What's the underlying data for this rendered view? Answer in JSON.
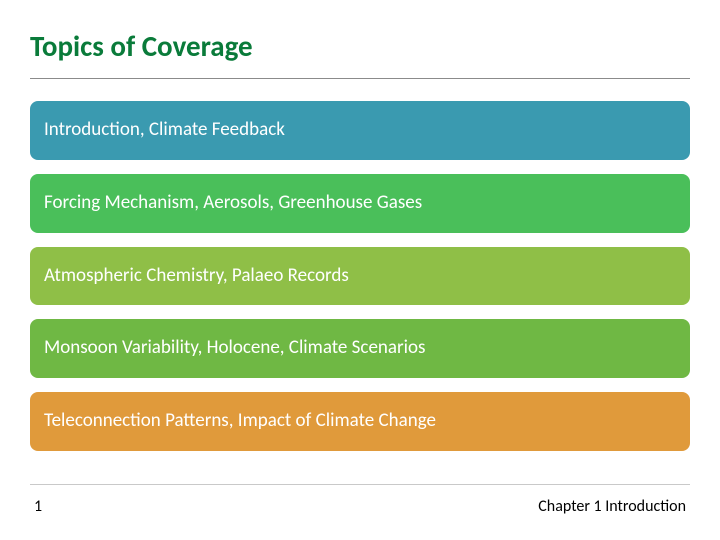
{
  "title": "Topics of Coverage",
  "title_color": "#0a7b3a",
  "title_fontsize": 29,
  "background_color": "#ffffff",
  "rule_color": "#8b8b8b",
  "footer_rule_color": "#c9c9c9",
  "topics": [
    {
      "label": "Introduction, Climate Feedback",
      "bg_color": "#3a9ab0"
    },
    {
      "label": "Forcing Mechanism, Aerosols, Greenhouse Gases",
      "bg_color": "#4abf5a"
    },
    {
      "label": "Atmospheric Chemistry, Palaeo Records",
      "bg_color": "#8fbf47"
    },
    {
      "label": "Monsoon Variability, Holocene, Climate Scenarios",
      "bg_color": "#6fb844"
    },
    {
      "label": "Teleconnection Patterns, Impact of Climate Change",
      "bg_color": "#e09a3b"
    }
  ],
  "topic_text_color": "#ffffff",
  "topic_fontsize": 19,
  "topic_border_radius": 8,
  "footer": {
    "page": "1",
    "chapter": "Chapter 1 Introduction"
  }
}
